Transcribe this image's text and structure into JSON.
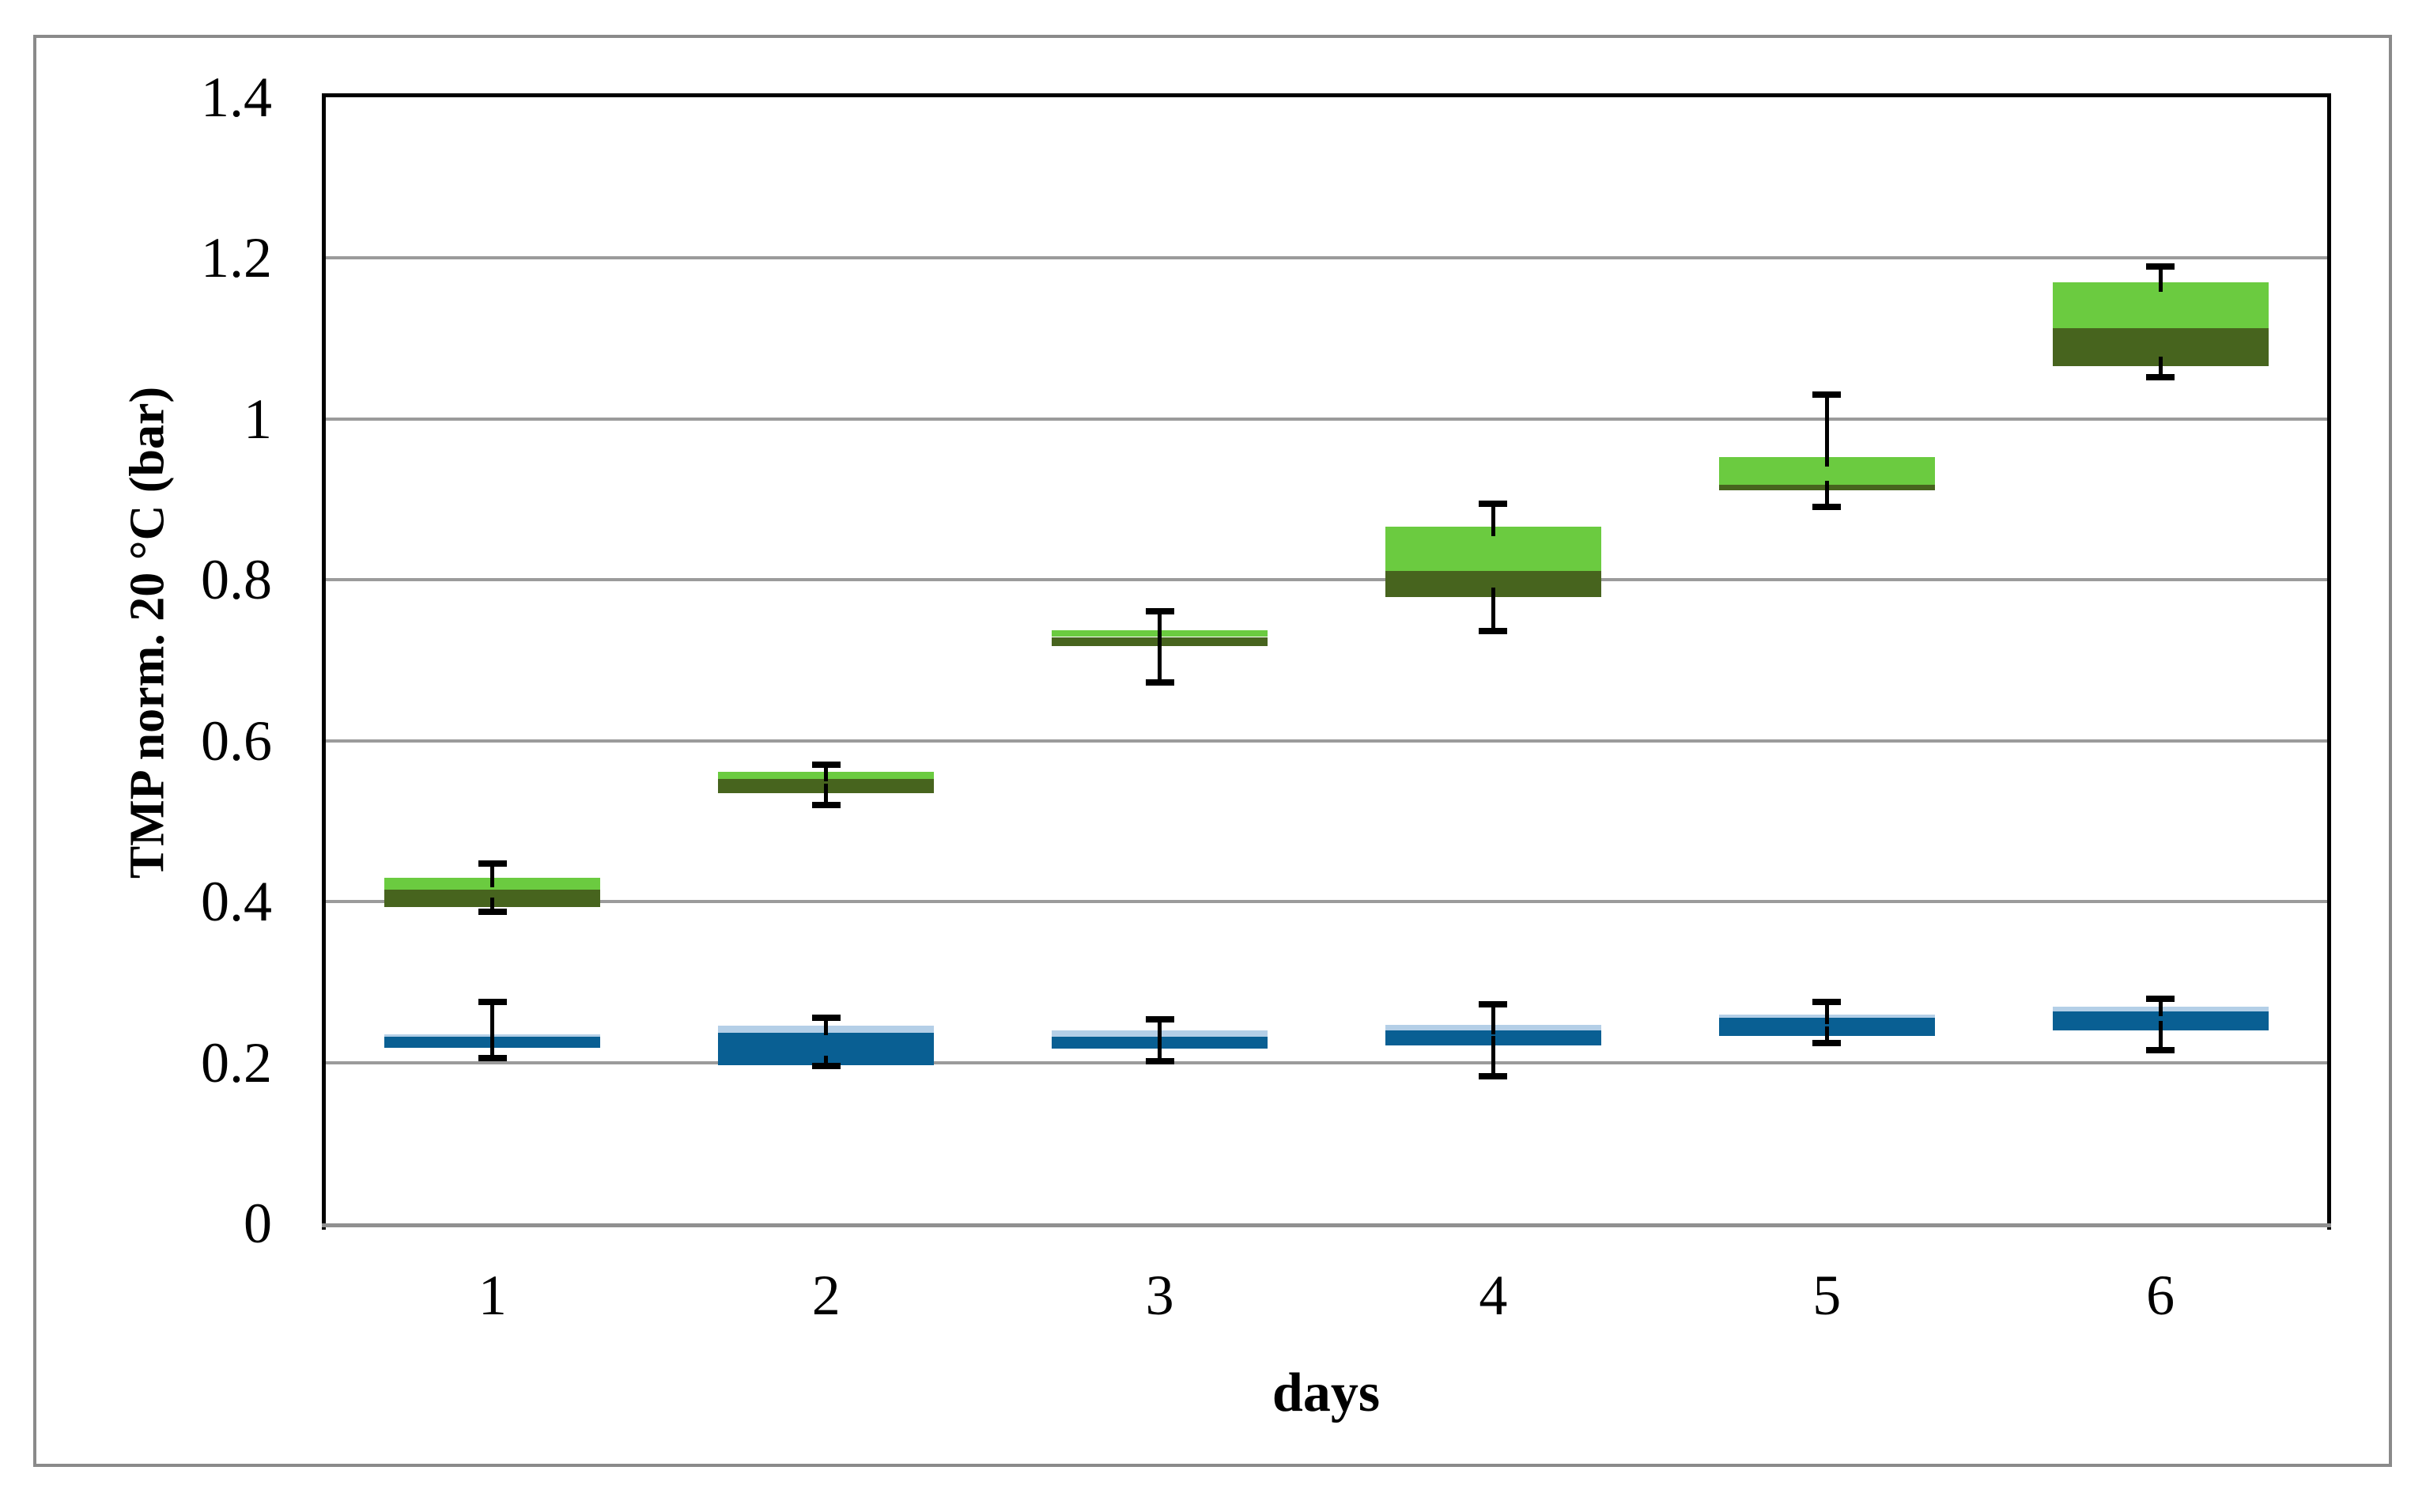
{
  "chart_data": {
    "type": "boxplot",
    "title": "",
    "xlabel": "days",
    "ylabel": "TMP norm. 20 °C (bar)",
    "ylim": [
      0,
      1.4
    ],
    "yticks": [
      {
        "value": 0,
        "label": "0"
      },
      {
        "value": 0.2,
        "label": "0.2"
      },
      {
        "value": 0.4,
        "label": "0.4"
      },
      {
        "value": 0.6,
        "label": "0.6"
      },
      {
        "value": 0.8,
        "label": "0.8"
      },
      {
        "value": 1,
        "label": "1"
      },
      {
        "value": 1.2,
        "label": "1.2"
      },
      {
        "value": 1.4,
        "label": "1.4"
      }
    ],
    "categories": [
      "1",
      "2",
      "3",
      "4",
      "5",
      "6"
    ],
    "grid": "horizontal",
    "legend": "none",
    "colors": {
      "green_upper": "#6BCB40",
      "green_lower": "#47641E",
      "blue_upper": "#B4CFE7",
      "blue_lower": "#095F93",
      "gridline": "#9b9b9b",
      "axis_frame": "#000000",
      "bottom_axis": "#909090",
      "outer_border": "#8a8a8a",
      "whisker": "#000000"
    },
    "series": [
      {
        "name": "green",
        "fill_upper": "#6BCB40",
        "fill_lower": "#47641E",
        "note": "upper band = median to Q3 (light), lower band = Q1 to median (dark)",
        "boxes": [
          {
            "category": "1",
            "low": 0.387,
            "q1": 0.393,
            "median": 0.415,
            "q3": 0.43,
            "high": 0.447
          },
          {
            "category": "2",
            "low": 0.52,
            "q1": 0.535,
            "median": 0.553,
            "q3": 0.561,
            "high": 0.57
          },
          {
            "category": "3",
            "low": 0.672,
            "q1": 0.718,
            "median": 0.729,
            "q3": 0.737,
            "high": 0.761
          },
          {
            "category": "4",
            "low": 0.736,
            "q1": 0.779,
            "median": 0.811,
            "q3": 0.866,
            "high": 0.895
          },
          {
            "category": "5",
            "low": 0.891,
            "q1": 0.911,
            "median": 0.918,
            "q3": 0.953,
            "high": 1.03
          },
          {
            "category": "6",
            "low": 1.052,
            "q1": 1.066,
            "median": 1.113,
            "q3": 1.17,
            "high": 1.19
          }
        ]
      },
      {
        "name": "blue",
        "fill_upper": "#B4CFE7",
        "fill_lower": "#095F93",
        "note": "upper band = median to Q3 (light), lower band = Q1 to median (dark)",
        "boxes": [
          {
            "category": "1",
            "low": 0.205,
            "q1": 0.218,
            "median": 0.232,
            "q3": 0.235,
            "high": 0.275
          },
          {
            "category": "2",
            "low": 0.196,
            "q1": 0.197,
            "median": 0.237,
            "q3": 0.246,
            "high": 0.256
          },
          {
            "category": "3",
            "low": 0.202,
            "q1": 0.217,
            "median": 0.232,
            "q3": 0.24,
            "high": 0.254
          },
          {
            "category": "4",
            "low": 0.183,
            "q1": 0.221,
            "median": 0.24,
            "q3": 0.247,
            "high": 0.272
          },
          {
            "category": "5",
            "low": 0.224,
            "q1": 0.233,
            "median": 0.256,
            "q3": 0.26,
            "high": 0.275
          },
          {
            "category": "6",
            "low": 0.215,
            "q1": 0.24,
            "median": 0.263,
            "q3": 0.269,
            "high": 0.279
          }
        ]
      }
    ]
  }
}
